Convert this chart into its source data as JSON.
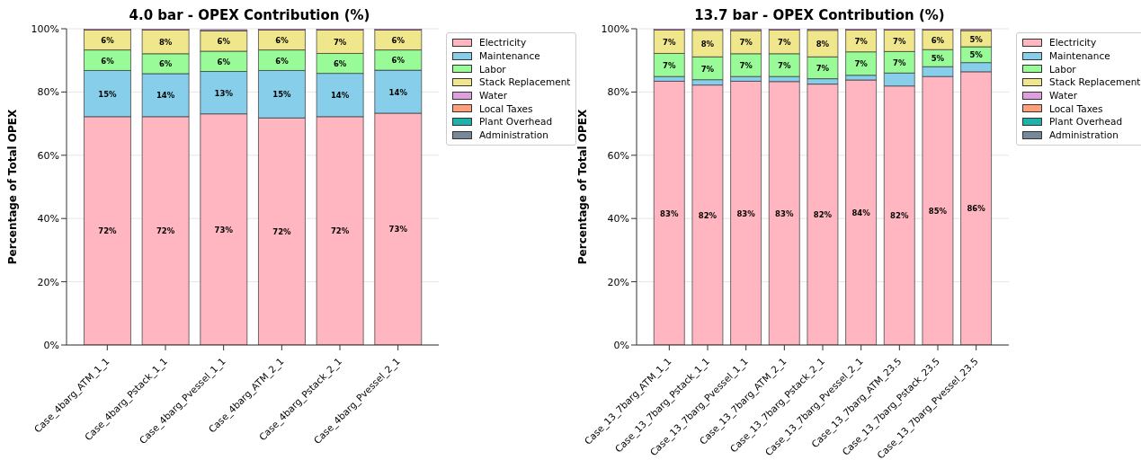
{
  "chart_data": [
    {
      "type": "bar",
      "stacked": true,
      "title": "4.0 bar - OPEX Contribution (%)",
      "ylabel": "Percentage of Total OPEX",
      "categories": [
        "Case_4barg_ATM_1_1",
        "Case_4barg_Pstack_1_1",
        "Case_4barg_Pvessel_1_1",
        "Case_4barg_ATM_2_1",
        "Case_4barg_Pstack_2_1",
        "Case_4barg_Pvessel_2_1"
      ],
      "ylim": [
        0,
        100
      ],
      "yticks": [
        {
          "value": 0,
          "label": "0%"
        },
        {
          "value": 20,
          "label": "20%"
        },
        {
          "value": 40,
          "label": "40%"
        },
        {
          "value": 60,
          "label": "60%"
        },
        {
          "value": 80,
          "label": "80%"
        },
        {
          "value": 100,
          "label": "100%"
        }
      ],
      "grid": "y",
      "legend": "top right",
      "series": [
        {
          "name": "Electricity",
          "color": "#ffb6c1",
          "values": [
            72.2,
            72.2,
            73.1,
            71.8,
            72.2,
            73.3
          ],
          "value_labels": [
            "72%",
            "72%",
            "73%",
            "72%",
            "72%",
            "73%"
          ]
        },
        {
          "name": "Maintenance",
          "color": "#87ceeb",
          "values": [
            14.6,
            13.6,
            13.4,
            15.0,
            13.7,
            13.6
          ],
          "value_labels": [
            "15%",
            "14%",
            "13%",
            "15%",
            "14%",
            "14%"
          ]
        },
        {
          "name": "Labor",
          "color": "#98fb98",
          "values": [
            6.5,
            6.3,
            6.4,
            6.5,
            6.3,
            6.4
          ],
          "value_labels": [
            "6%",
            "6%",
            "6%",
            "6%",
            "6%",
            "6%"
          ]
        },
        {
          "name": "Stack Replacement",
          "color": "#f0e68c",
          "values": [
            6.3,
            7.5,
            6.4,
            6.3,
            7.4,
            6.3
          ],
          "value_labels": [
            "6%",
            "8%",
            "6%",
            "6%",
            "7%",
            "6%"
          ]
        },
        {
          "name": "Water",
          "color": "#dda0dd",
          "values": [
            0.4,
            0.4,
            0.4,
            0.4,
            0.4,
            0.4
          ]
        },
        {
          "name": "Local Taxes",
          "color": "#ffa07a",
          "values": [
            0,
            0,
            0,
            0,
            0,
            0
          ]
        },
        {
          "name": "Plant Overhead",
          "color": "#20b2aa",
          "values": [
            0,
            0,
            0,
            0,
            0,
            0
          ]
        },
        {
          "name": "Administration",
          "color": "#778899",
          "values": [
            0,
            0,
            0,
            0,
            0,
            0
          ]
        }
      ]
    },
    {
      "type": "bar",
      "stacked": true,
      "title": "13.7 bar - OPEX Contribution (%)",
      "ylabel": "Percentage of Total OPEX",
      "categories": [
        "Case_13_7barg_ATM_1_1",
        "Case_13_7barg_Pstack_1_1",
        "Case_13_7barg_Pvessel_1_1",
        "Case_13_7barg_ATM_2_1",
        "Case_13_7barg_Pstack_2_1",
        "Case_13_7barg_Pvessel_2_1",
        "Case_13_7barg_ATM_23.5",
        "Case_13_7barg_Pstack_23.5",
        "Case_13_7barg_Pvessel_23.5"
      ],
      "ylim": [
        0,
        100
      ],
      "yticks": [
        {
          "value": 0,
          "label": "0%"
        },
        {
          "value": 20,
          "label": "20%"
        },
        {
          "value": 40,
          "label": "40%"
        },
        {
          "value": 60,
          "label": "60%"
        },
        {
          "value": 80,
          "label": "80%"
        },
        {
          "value": 100,
          "label": "100%"
        }
      ],
      "grid": "y",
      "legend": "top right",
      "series": [
        {
          "name": "Electricity",
          "color": "#ffb6c1",
          "values": [
            83.4,
            82.2,
            83.4,
            83.3,
            82.5,
            83.8,
            81.9,
            84.9,
            86.4
          ],
          "value_labels": [
            "83%",
            "82%",
            "83%",
            "83%",
            "82%",
            "84%",
            "82%",
            "85%",
            "86%"
          ]
        },
        {
          "name": "Maintenance",
          "color": "#87ceeb",
          "values": [
            1.5,
            1.7,
            1.5,
            1.6,
            1.7,
            1.5,
            4.1,
            3.1,
            2.9
          ]
        },
        {
          "name": "Labor",
          "color": "#98fb98",
          "values": [
            7.3,
            7.2,
            7.2,
            7.2,
            6.9,
            7.4,
            6.8,
            5.4,
            5.0
          ],
          "value_labels": [
            "7%",
            "7%",
            "7%",
            "7%",
            "7%",
            "7%",
            "7%",
            "5%",
            "5%"
          ]
        },
        {
          "name": "Stack Replacement",
          "color": "#f0e68c",
          "values": [
            7.4,
            8.4,
            7.3,
            7.5,
            8.4,
            6.9,
            6.8,
            6.2,
            5.1
          ],
          "value_labels": [
            "7%",
            "8%",
            "7%",
            "7%",
            "8%",
            "7%",
            "7%",
            "6%",
            "5%"
          ]
        },
        {
          "name": "Water",
          "color": "#dda0dd",
          "values": [
            0.4,
            0.4,
            0.4,
            0.4,
            0.4,
            0.4,
            0.4,
            0.4,
            0.4
          ]
        },
        {
          "name": "Local Taxes",
          "color": "#ffa07a",
          "values": [
            0,
            0,
            0,
            0,
            0,
            0,
            0,
            0,
            0
          ]
        },
        {
          "name": "Plant Overhead",
          "color": "#20b2aa",
          "values": [
            0,
            0,
            0,
            0,
            0,
            0,
            0,
            0,
            0
          ]
        },
        {
          "name": "Administration",
          "color": "#778899",
          "values": [
            0,
            0,
            0,
            0,
            0,
            0,
            0,
            0,
            0
          ]
        }
      ]
    }
  ]
}
